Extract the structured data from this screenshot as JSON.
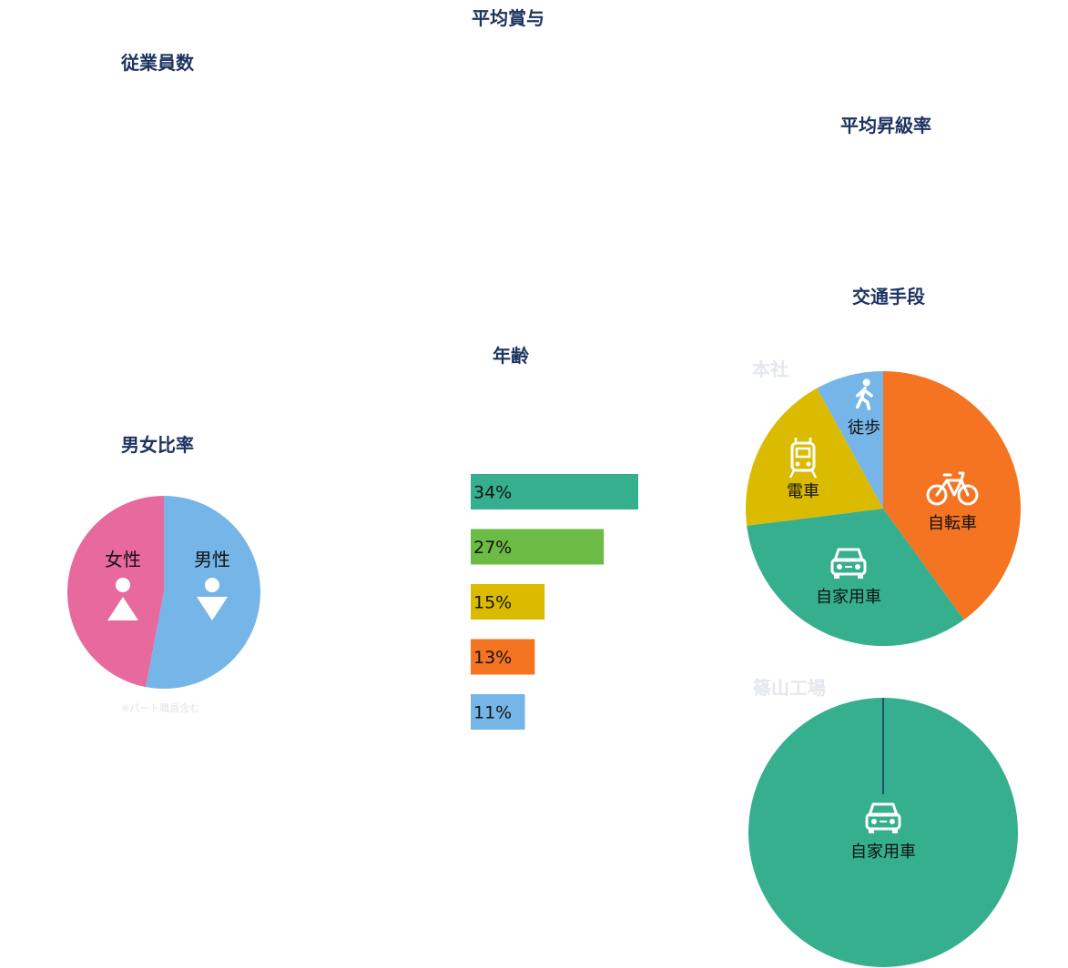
{
  "headings": {
    "avg_bonus": "平均賞与",
    "employees": "従業員数",
    "avg_promotion": "平均昇級率",
    "commute": "交通手段",
    "age": "年齢",
    "gender_ratio": "男女比率"
  },
  "gender_note": "※パート職員含む",
  "commute_sites": {
    "head_office": "本社",
    "sasayama": "篠山工場"
  },
  "chart_data": [
    {
      "type": "pie",
      "title": "男女比率",
      "slices": [
        {
          "label": "女性",
          "value": 47,
          "color": "#e8699e",
          "icon": "female-icon"
        },
        {
          "label": "男性",
          "value": 53,
          "color": "#76b5e8",
          "icon": "male-icon"
        }
      ]
    },
    {
      "type": "bar",
      "title": "年齢",
      "orientation": "horizontal",
      "values": [
        34,
        27,
        15,
        13,
        11
      ],
      "labels": [
        "34%",
        "27%",
        "15%",
        "13%",
        "11%"
      ],
      "colors": [
        "#36af8e",
        "#6cbb45",
        "#dbbb00",
        "#f47421",
        "#76b5e8"
      ],
      "xlim": [
        0,
        100
      ]
    },
    {
      "type": "pie",
      "title": "本社",
      "slices": [
        {
          "label": "自転車",
          "value": 40,
          "color": "#f47421",
          "icon": "bicycle-icon"
        },
        {
          "label": "自家用車",
          "value": 33,
          "color": "#36af8e",
          "icon": "car-icon"
        },
        {
          "label": "電車",
          "value": 19,
          "color": "#dbbb00",
          "icon": "train-icon"
        },
        {
          "label": "徒歩",
          "value": 8,
          "color": "#76b5e8",
          "icon": "walking-icon"
        }
      ]
    },
    {
      "type": "pie",
      "title": "篠山工場",
      "slices": [
        {
          "label": "自家用車",
          "value": 100,
          "color": "#36af8e",
          "icon": "car-icon"
        }
      ]
    }
  ]
}
